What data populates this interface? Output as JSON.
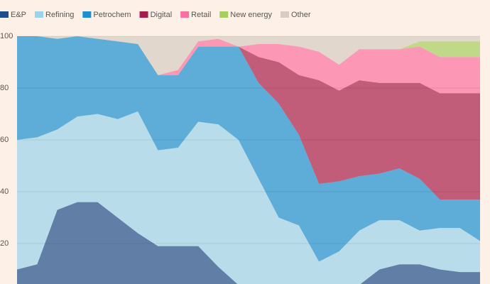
{
  "chart_data": {
    "type": "stacked_area",
    "categories": [
      null,
      null,
      null,
      null,
      null,
      null,
      null,
      null,
      null,
      null,
      null,
      null,
      null,
      null,
      null,
      null,
      null,
      null,
      null,
      null,
      null,
      null,
      null,
      null
    ],
    "series": [
      {
        "name": "E&P",
        "color": "#1e4d8c",
        "values": [
          10,
          12,
          33,
          36,
          36,
          30,
          24,
          19,
          19,
          19,
          11,
          4,
          0,
          0,
          0,
          0,
          0,
          4,
          10,
          12,
          12,
          10,
          9,
          9
        ]
      },
      {
        "name": "Refining",
        "color": "#9ad3ea",
        "values": [
          50,
          49,
          31,
          33,
          34,
          38,
          47,
          37,
          38,
          48,
          55,
          56,
          45,
          30,
          27,
          13,
          17,
          21,
          19,
          17,
          13,
          16,
          17,
          12
        ]
      },
      {
        "name": "Petrochem",
        "color": "#1a8fd1",
        "values": [
          40,
          39,
          35,
          31,
          29,
          30,
          26,
          29,
          28,
          29,
          30,
          36,
          37,
          44,
          35,
          30,
          27,
          21,
          18,
          20,
          20,
          11,
          11,
          16
        ]
      },
      {
        "name": "Digital",
        "color": "#a61c4a",
        "values": [
          0,
          0,
          0,
          0,
          0,
          0,
          0,
          0,
          0,
          0,
          0,
          0,
          10,
          16,
          23,
          40,
          35,
          37,
          35,
          33,
          37,
          41,
          41,
          41
        ]
      },
      {
        "name": "Retail",
        "color": "#fb70a0",
        "values": [
          0,
          0,
          0,
          0,
          0,
          0,
          0,
          0,
          2,
          2,
          3,
          0,
          5,
          7,
          11,
          11,
          10,
          12,
          13,
          13,
          14,
          14,
          14,
          14
        ]
      },
      {
        "name": "New energy",
        "color": "#a5cf5f",
        "values": [
          0,
          0,
          0,
          0,
          0,
          0,
          0,
          0,
          0,
          0,
          0,
          0,
          0,
          0,
          0,
          0,
          0,
          0,
          0,
          0,
          2,
          6,
          6,
          6
        ]
      },
      {
        "name": "Other",
        "color": "#d6ccc2",
        "values": [
          0,
          0,
          1,
          0,
          1,
          2,
          3,
          15,
          13,
          2,
          1,
          4,
          3,
          3,
          4,
          6,
          11,
          5,
          5,
          5,
          2,
          2,
          2,
          2
        ]
      }
    ],
    "ylim": [
      0,
      100
    ],
    "yticks": [
      20,
      40,
      60,
      80,
      100
    ],
    "grid": true,
    "legend": "top"
  }
}
